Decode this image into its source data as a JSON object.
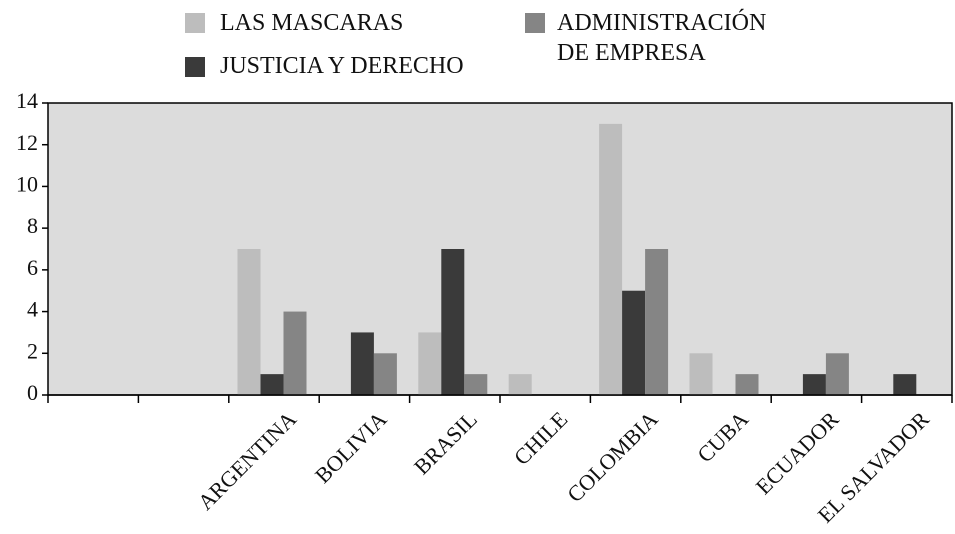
{
  "chart_data": {
    "type": "bar",
    "categories": [
      null,
      null,
      "ARGENTINA",
      "BOLIVIA",
      "BRASIL",
      "CHILE",
      "COLOMBIA",
      "CUBA",
      "ECUADOR",
      "EL SALVADOR"
    ],
    "series": [
      {
        "name": "LAS MASCARAS",
        "color": "#bdbdbd",
        "values": [
          null,
          null,
          7,
          0,
          3,
          1,
          13,
          2,
          0,
          0
        ]
      },
      {
        "name": "JUSTICIA Y DERECHO",
        "color": "#3a3a3a",
        "values": [
          null,
          null,
          1,
          3,
          7,
          0,
          5,
          0,
          1,
          1
        ]
      },
      {
        "name": "ADMINISTRACIÓN DE EMPRESA",
        "color": "#858585",
        "values": [
          null,
          null,
          4,
          2,
          1,
          0,
          7,
          1,
          2,
          0
        ]
      }
    ],
    "ylim": [
      0,
      14
    ],
    "yticks": [
      0,
      2,
      4,
      6,
      8,
      10,
      12,
      14
    ],
    "legend": "top"
  }
}
